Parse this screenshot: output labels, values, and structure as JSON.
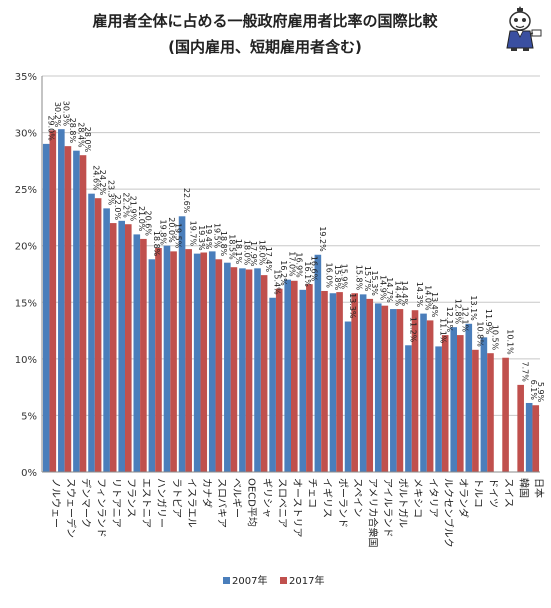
{
  "chart_data": {
    "type": "bar",
    "title": "雇用者全体に占める一般政府雇用者比率の国際比較",
    "subtitle": "(国内雇用、短期雇用者含む)",
    "xlabel": "",
    "ylabel": "",
    "ylim": [
      0,
      35
    ],
    "y_ticks": [
      "0%",
      "5%",
      "10%",
      "15%",
      "20%",
      "25%",
      "30%",
      "35%"
    ],
    "grid": true,
    "legend_position": "bottom",
    "categories": [
      "ノルウェー",
      "スウェーデン",
      "デンマーク",
      "フィンランド",
      "リトアニア",
      "フランス",
      "エストニア",
      "ハンガリー",
      "ラトビア",
      "イスラエル",
      "カナダ",
      "スロバキア",
      "ベルギー",
      "OECD平均",
      "ギリシャ",
      "スロベニア",
      "オーストリア",
      "チェコ",
      "イギリス",
      "ポーランド",
      "スペイン",
      "アメリカ合衆国",
      "アイルランド",
      "ポルトガル",
      "メキシコ",
      "イタリア",
      "ルクセンブルク",
      "オランダ",
      "トルコ",
      "ドイツ",
      "スイス",
      "韓国",
      "日本"
    ],
    "series": [
      {
        "name": "2007年",
        "color": "#4a7ebb",
        "values": [
          29.0,
          30.3,
          28.4,
          24.6,
          23.3,
          22.2,
          21.0,
          18.8,
          20.0,
          22.6,
          19.3,
          19.5,
          18.5,
          18.0,
          18.0,
          15.4,
          17.0,
          16.1,
          19.2,
          15.8,
          13.3,
          15.7,
          14.9,
          14.4,
          11.2,
          14.0,
          11.1,
          12.8,
          13.1,
          11.9,
          null,
          null,
          6.1
        ],
        "labels": [
          "29.0%",
          "30.3%",
          "28.4%",
          "24.6%",
          "23.3%",
          "22.2%",
          "21.0%",
          "18.8%",
          "20.0%",
          "22.6%",
          "19.3%",
          "19.5%",
          "18.5%",
          "18.0%",
          "18.0%",
          "15.4%",
          "17.0%",
          "16.1%",
          "19.2%",
          "15.8%",
          "13.3%",
          "15.7%",
          "14.9%",
          "14.4%",
          "11.2%",
          "14.0%",
          "11.1%",
          "12.8%",
          "13.1%",
          "11.9%",
          "",
          "",
          "6.1%"
        ]
      },
      {
        "name": "2017年",
        "color": "#c0504d",
        "values": [
          30.2,
          28.8,
          28.0,
          24.2,
          22.0,
          21.9,
          20.6,
          19.8,
          19.5,
          19.7,
          19.4,
          18.8,
          18.1,
          17.9,
          17.4,
          16.2,
          16.9,
          16.6,
          16.0,
          15.9,
          15.8,
          15.3,
          14.7,
          14.4,
          14.3,
          13.4,
          12.1,
          12.1,
          10.8,
          10.5,
          10.1,
          7.7,
          5.9
        ],
        "labels": [
          "30.2%",
          "28.8%",
          "28.0%",
          "24.2%",
          "22.0%",
          "21.9%",
          "20.6%",
          "19.8%",
          "19.5%",
          "19.7%",
          "19.4%",
          "18.8%",
          "18.1%",
          "17.9%",
          "17.4%",
          "16.2%",
          "16.9%",
          "16.6%",
          "16.0%",
          "15.9%",
          "15.8%",
          "15.3%",
          "14.7%",
          "14.4%",
          "14.3%",
          "13.4%",
          "12.1%",
          "12.1%",
          "10.8%",
          "10.5%",
          "10.1%",
          "7.7%",
          "5.9%"
        ]
      }
    ]
  },
  "colors": {
    "gridline": "#c8c8c8",
    "axis": "#888888",
    "background": "#ffffff"
  },
  "logo_icon": "mascot-icon"
}
